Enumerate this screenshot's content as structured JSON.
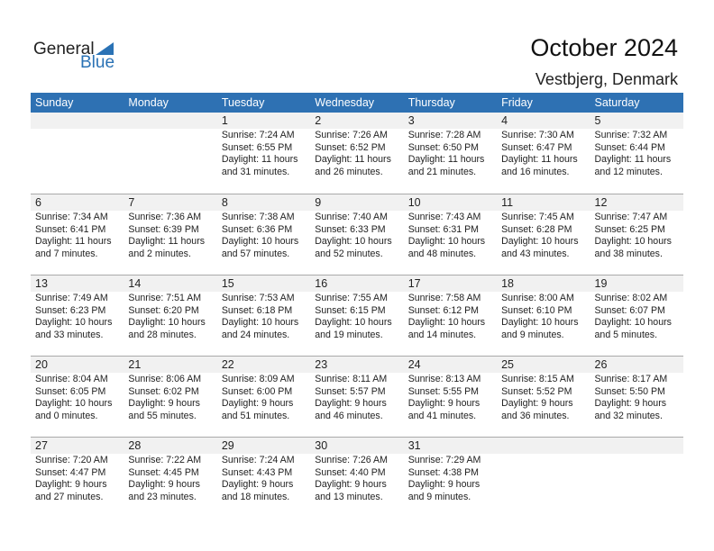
{
  "logo": {
    "general": "General",
    "blue": "Blue"
  },
  "header": {
    "title": "October 2024",
    "location": "Vestbjerg, Denmark"
  },
  "days": [
    "Sunday",
    "Monday",
    "Tuesday",
    "Wednesday",
    "Thursday",
    "Friday",
    "Saturday"
  ],
  "weeks": [
    [
      null,
      null,
      {
        "day": "1",
        "sunrise": "Sunrise: 7:24 AM",
        "sunset": "Sunset: 6:55 PM",
        "daylight": "Daylight: 11 hours",
        "minutes": "and 31 minutes."
      },
      {
        "day": "2",
        "sunrise": "Sunrise: 7:26 AM",
        "sunset": "Sunset: 6:52 PM",
        "daylight": "Daylight: 11 hours",
        "minutes": "and 26 minutes."
      },
      {
        "day": "3",
        "sunrise": "Sunrise: 7:28 AM",
        "sunset": "Sunset: 6:50 PM",
        "daylight": "Daylight: 11 hours",
        "minutes": "and 21 minutes."
      },
      {
        "day": "4",
        "sunrise": "Sunrise: 7:30 AM",
        "sunset": "Sunset: 6:47 PM",
        "daylight": "Daylight: 11 hours",
        "minutes": "and 16 minutes."
      },
      {
        "day": "5",
        "sunrise": "Sunrise: 7:32 AM",
        "sunset": "Sunset: 6:44 PM",
        "daylight": "Daylight: 11 hours",
        "minutes": "and 12 minutes."
      }
    ],
    [
      {
        "day": "6",
        "sunrise": "Sunrise: 7:34 AM",
        "sunset": "Sunset: 6:41 PM",
        "daylight": "Daylight: 11 hours",
        "minutes": "and 7 minutes."
      },
      {
        "day": "7",
        "sunrise": "Sunrise: 7:36 AM",
        "sunset": "Sunset: 6:39 PM",
        "daylight": "Daylight: 11 hours",
        "minutes": "and 2 minutes."
      },
      {
        "day": "8",
        "sunrise": "Sunrise: 7:38 AM",
        "sunset": "Sunset: 6:36 PM",
        "daylight": "Daylight: 10 hours",
        "minutes": "and 57 minutes."
      },
      {
        "day": "9",
        "sunrise": "Sunrise: 7:40 AM",
        "sunset": "Sunset: 6:33 PM",
        "daylight": "Daylight: 10 hours",
        "minutes": "and 52 minutes."
      },
      {
        "day": "10",
        "sunrise": "Sunrise: 7:43 AM",
        "sunset": "Sunset: 6:31 PM",
        "daylight": "Daylight: 10 hours",
        "minutes": "and 48 minutes."
      },
      {
        "day": "11",
        "sunrise": "Sunrise: 7:45 AM",
        "sunset": "Sunset: 6:28 PM",
        "daylight": "Daylight: 10 hours",
        "minutes": "and 43 minutes."
      },
      {
        "day": "12",
        "sunrise": "Sunrise: 7:47 AM",
        "sunset": "Sunset: 6:25 PM",
        "daylight": "Daylight: 10 hours",
        "minutes": "and 38 minutes."
      }
    ],
    [
      {
        "day": "13",
        "sunrise": "Sunrise: 7:49 AM",
        "sunset": "Sunset: 6:23 PM",
        "daylight": "Daylight: 10 hours",
        "minutes": "and 33 minutes."
      },
      {
        "day": "14",
        "sunrise": "Sunrise: 7:51 AM",
        "sunset": "Sunset: 6:20 PM",
        "daylight": "Daylight: 10 hours",
        "minutes": "and 28 minutes."
      },
      {
        "day": "15",
        "sunrise": "Sunrise: 7:53 AM",
        "sunset": "Sunset: 6:18 PM",
        "daylight": "Daylight: 10 hours",
        "minutes": "and 24 minutes."
      },
      {
        "day": "16",
        "sunrise": "Sunrise: 7:55 AM",
        "sunset": "Sunset: 6:15 PM",
        "daylight": "Daylight: 10 hours",
        "minutes": "and 19 minutes."
      },
      {
        "day": "17",
        "sunrise": "Sunrise: 7:58 AM",
        "sunset": "Sunset: 6:12 PM",
        "daylight": "Daylight: 10 hours",
        "minutes": "and 14 minutes."
      },
      {
        "day": "18",
        "sunrise": "Sunrise: 8:00 AM",
        "sunset": "Sunset: 6:10 PM",
        "daylight": "Daylight: 10 hours",
        "minutes": "and 9 minutes."
      },
      {
        "day": "19",
        "sunrise": "Sunrise: 8:02 AM",
        "sunset": "Sunset: 6:07 PM",
        "daylight": "Daylight: 10 hours",
        "minutes": "and 5 minutes."
      }
    ],
    [
      {
        "day": "20",
        "sunrise": "Sunrise: 8:04 AM",
        "sunset": "Sunset: 6:05 PM",
        "daylight": "Daylight: 10 hours",
        "minutes": "and 0 minutes."
      },
      {
        "day": "21",
        "sunrise": "Sunrise: 8:06 AM",
        "sunset": "Sunset: 6:02 PM",
        "daylight": "Daylight: 9 hours",
        "minutes": "and 55 minutes."
      },
      {
        "day": "22",
        "sunrise": "Sunrise: 8:09 AM",
        "sunset": "Sunset: 6:00 PM",
        "daylight": "Daylight: 9 hours",
        "minutes": "and 51 minutes."
      },
      {
        "day": "23",
        "sunrise": "Sunrise: 8:11 AM",
        "sunset": "Sunset: 5:57 PM",
        "daylight": "Daylight: 9 hours",
        "minutes": "and 46 minutes."
      },
      {
        "day": "24",
        "sunrise": "Sunrise: 8:13 AM",
        "sunset": "Sunset: 5:55 PM",
        "daylight": "Daylight: 9 hours",
        "minutes": "and 41 minutes."
      },
      {
        "day": "25",
        "sunrise": "Sunrise: 8:15 AM",
        "sunset": "Sunset: 5:52 PM",
        "daylight": "Daylight: 9 hours",
        "minutes": "and 36 minutes."
      },
      {
        "day": "26",
        "sunrise": "Sunrise: 8:17 AM",
        "sunset": "Sunset: 5:50 PM",
        "daylight": "Daylight: 9 hours",
        "minutes": "and 32 minutes."
      }
    ],
    [
      {
        "day": "27",
        "sunrise": "Sunrise: 7:20 AM",
        "sunset": "Sunset: 4:47 PM",
        "daylight": "Daylight: 9 hours",
        "minutes": "and 27 minutes."
      },
      {
        "day": "28",
        "sunrise": "Sunrise: 7:22 AM",
        "sunset": "Sunset: 4:45 PM",
        "daylight": "Daylight: 9 hours",
        "minutes": "and 23 minutes."
      },
      {
        "day": "29",
        "sunrise": "Sunrise: 7:24 AM",
        "sunset": "Sunset: 4:43 PM",
        "daylight": "Daylight: 9 hours",
        "minutes": "and 18 minutes."
      },
      {
        "day": "30",
        "sunrise": "Sunrise: 7:26 AM",
        "sunset": "Sunset: 4:40 PM",
        "daylight": "Daylight: 9 hours",
        "minutes": "and 13 minutes."
      },
      {
        "day": "31",
        "sunrise": "Sunrise: 7:29 AM",
        "sunset": "Sunset: 4:38 PM",
        "daylight": "Daylight: 9 hours",
        "minutes": "and 9 minutes."
      },
      null,
      null
    ]
  ]
}
